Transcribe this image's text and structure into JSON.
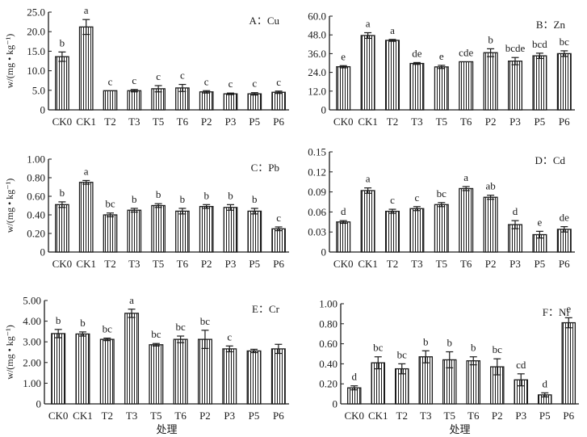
{
  "figure": {
    "ylabel": "w/(mg • kg⁻¹)",
    "xlabel": "处理"
  },
  "chart_data": [
    {
      "type": "bar",
      "title": "A：Cu",
      "xlabel": "",
      "ylabel": "w/(mg • kg⁻¹)",
      "categories": [
        "CK0",
        "CK1",
        "T2",
        "T3",
        "T5",
        "T6",
        "P2",
        "P3",
        "P5",
        "P6"
      ],
      "values": [
        13.6,
        21.2,
        4.9,
        4.9,
        5.4,
        5.6,
        4.6,
        4.1,
        4.1,
        4.5
      ],
      "errors": [
        1.2,
        1.9,
        0.0,
        0.3,
        0.8,
        0.9,
        0.3,
        0.2,
        0.3,
        0.3
      ],
      "significance": [
        "b",
        "a",
        "c",
        "c",
        "c",
        "c",
        "c",
        "c",
        "c",
        "c"
      ],
      "yticks": [
        "0",
        "5.0",
        "10.0",
        "15.0",
        "20.0",
        "25.0"
      ],
      "ylim": [
        0,
        25
      ]
    },
    {
      "type": "bar",
      "title": "B：Zn",
      "xlabel": "",
      "ylabel": "",
      "categories": [
        "CK0",
        "CK1",
        "T2",
        "T3",
        "T5",
        "T6",
        "P2",
        "P3",
        "P5",
        "P6"
      ],
      "values": [
        27.6,
        47.6,
        44.5,
        29.7,
        27.5,
        30.8,
        36.6,
        31.2,
        34.6,
        36.0
      ],
      "errors": [
        0.7,
        1.8,
        0.6,
        0.6,
        1.0,
        0.0,
        2.5,
        2.3,
        1.7,
        1.8
      ],
      "significance": [
        "e",
        "a",
        "a",
        "de",
        "e",
        "cde",
        "b",
        "bcde",
        "bcd",
        "bc"
      ],
      "yticks": [
        "0",
        "12.0",
        "24.0",
        "36.0",
        "48.0",
        "60.0"
      ],
      "ylim": [
        0,
        60
      ]
    },
    {
      "type": "bar",
      "title": "C：Pb",
      "xlabel": "",
      "ylabel": "w/(mg • kg⁻¹)",
      "categories": [
        "CK0",
        "CK1",
        "T2",
        "T3",
        "T5",
        "T6",
        "P2",
        "P3",
        "P5",
        "P6"
      ],
      "values": [
        0.51,
        0.75,
        0.4,
        0.45,
        0.5,
        0.44,
        0.49,
        0.48,
        0.44,
        0.25
      ],
      "errors": [
        0.03,
        0.02,
        0.02,
        0.02,
        0.02,
        0.03,
        0.02,
        0.03,
        0.03,
        0.02
      ],
      "significance": [
        "b",
        "a",
        "bc",
        "b",
        "b",
        "b",
        "b",
        "b",
        "b",
        "c"
      ],
      "yticks": [
        "0",
        "0.20",
        "0.40",
        "0.60",
        "0.80",
        "1.00"
      ],
      "ylim": [
        0,
        1.0
      ]
    },
    {
      "type": "bar",
      "title": "D：Cd",
      "xlabel": "",
      "ylabel": "",
      "categories": [
        "CK0",
        "CK1",
        "T2",
        "T3",
        "T5",
        "T6",
        "P2",
        "P3",
        "P5",
        "P6"
      ],
      "values": [
        0.045,
        0.092,
        0.061,
        0.065,
        0.071,
        0.095,
        0.082,
        0.041,
        0.026,
        0.034
      ],
      "errors": [
        0.002,
        0.004,
        0.003,
        0.003,
        0.003,
        0.003,
        0.003,
        0.006,
        0.005,
        0.004
      ],
      "significance": [
        "d",
        "a",
        "c",
        "c",
        "bc",
        "a",
        "ab",
        "d",
        "e",
        "de"
      ],
      "yticks": [
        "0",
        "0.03",
        "0.06",
        "0.09",
        "0.12",
        "0.15"
      ],
      "ylim": [
        0,
        0.15
      ]
    },
    {
      "type": "bar",
      "title": "E：Cr",
      "xlabel": "处理",
      "ylabel": "w/(mg • kg⁻¹)",
      "categories": [
        "CK0",
        "CK1",
        "T2",
        "T3",
        "T5",
        "T6",
        "P2",
        "P3",
        "P5",
        "P6"
      ],
      "values": [
        3.4,
        3.38,
        3.12,
        4.38,
        2.86,
        3.12,
        3.12,
        2.66,
        2.56,
        2.66
      ],
      "errors": [
        0.2,
        0.1,
        0.06,
        0.2,
        0.06,
        0.16,
        0.44,
        0.14,
        0.08,
        0.22
      ],
      "significance": [
        "b",
        "b",
        "bc",
        "a",
        "bc",
        "bc",
        "bc",
        "c",
        "",
        ""
      ],
      "yticks": [
        "0",
        "1.00",
        "2.00",
        "3.00",
        "4.00",
        "5.00"
      ],
      "ylim": [
        0,
        5.0
      ]
    },
    {
      "type": "bar",
      "title": "F：Ni",
      "xlabel": "处理",
      "ylabel": "",
      "categories": [
        "CK0",
        "CK1",
        "T2",
        "T3",
        "T5",
        "T6",
        "P2",
        "P3",
        "P5",
        "P6"
      ],
      "values": [
        0.16,
        0.41,
        0.35,
        0.47,
        0.44,
        0.43,
        0.37,
        0.24,
        0.09,
        0.81
      ],
      "errors": [
        0.02,
        0.06,
        0.05,
        0.06,
        0.08,
        0.04,
        0.08,
        0.06,
        0.02,
        0.05
      ],
      "significance": [
        "d",
        "bc",
        "bc",
        "b",
        "b",
        "b",
        "bc",
        "cd",
        "d",
        "e"
      ],
      "yticks": [
        "0",
        "0.20",
        "0.40",
        "0.60",
        "0.80",
        "1.00"
      ],
      "ylim": [
        0,
        1.0
      ]
    }
  ]
}
